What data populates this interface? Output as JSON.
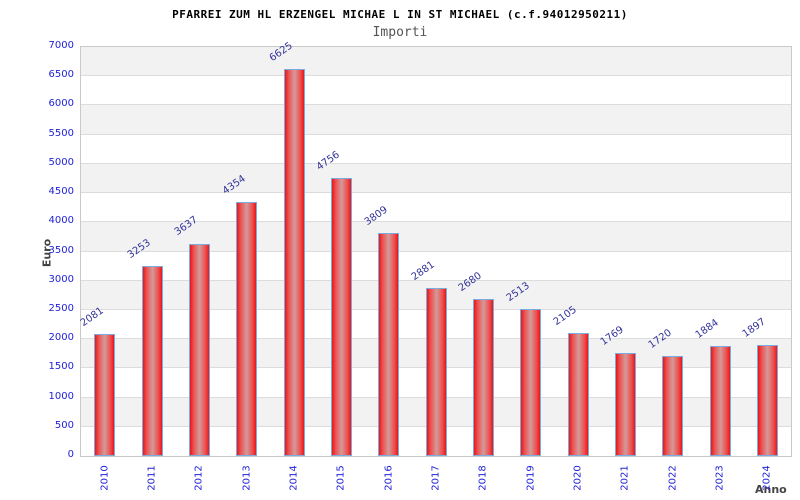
{
  "chart_data": {
    "type": "bar",
    "title": "PFARREI ZUM HL ERZENGEL MICHAE L IN ST MICHAEL (c.f.94012950211)",
    "subtitle": "Importi",
    "xlabel": "Anno",
    "ylabel": "Euro",
    "categories": [
      "2010",
      "2011",
      "2012",
      "2013",
      "2014",
      "2015",
      "2016",
      "2017",
      "2018",
      "2019",
      "2020",
      "2021",
      "2022",
      "2023",
      "2024"
    ],
    "values": [
      2081,
      3253,
      3637,
      4354,
      6625,
      4756,
      3809,
      2881,
      2680,
      2513,
      2105,
      1769,
      1720,
      1884,
      1897
    ],
    "ylim": [
      0,
      7000
    ],
    "ytick_step": 500,
    "grid": "horizontal-bands-alternating",
    "legend": "none",
    "colors": {
      "bar_fill_edge": "#e81717",
      "bar_fill_center": "#d49a9a",
      "bar_border": "#7cacdf",
      "tick_label": "#2222d6",
      "value_label": "#333399",
      "axis_title": "#444444",
      "band_gray": "#f2f2f2",
      "band_white": "#ffffff",
      "gridline": "#dcdcdc",
      "plot_border": "#c9c9c9",
      "title_color": "#000000",
      "subtitle_color": "#555555"
    }
  }
}
